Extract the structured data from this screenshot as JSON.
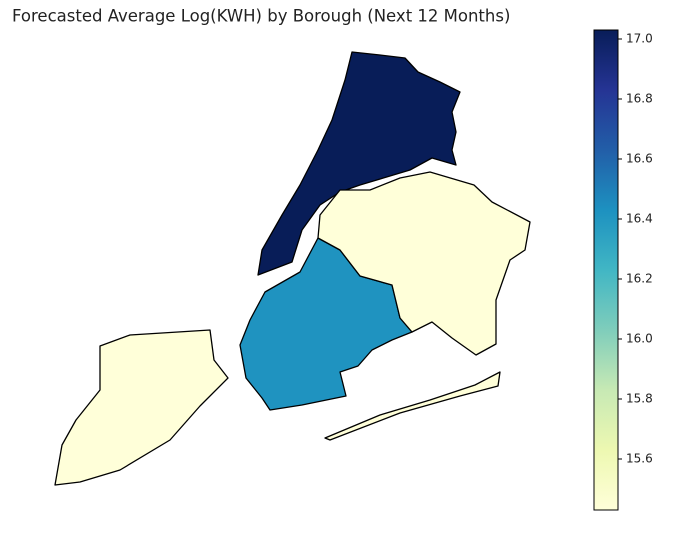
{
  "chart_data": {
    "type": "choropleth",
    "title": "Forecasted Average Log(KWH) by Borough (Next 12 Months)",
    "values": [
      17.03,
      16.42,
      15.43,
      15.43
    ],
    "colormap": "YlGnBu",
    "clim": [
      15.43,
      17.03
    ],
    "cticks": [
      {
        "value": 15.6,
        "label": "15.6"
      },
      15.8,
      {
        "value": 16.0,
        "label": "16.0"
      },
      16.2,
      16.4,
      16.6,
      16.8,
      {
        "value": 17.0,
        "label": "17.0"
      }
    ]
  }
}
